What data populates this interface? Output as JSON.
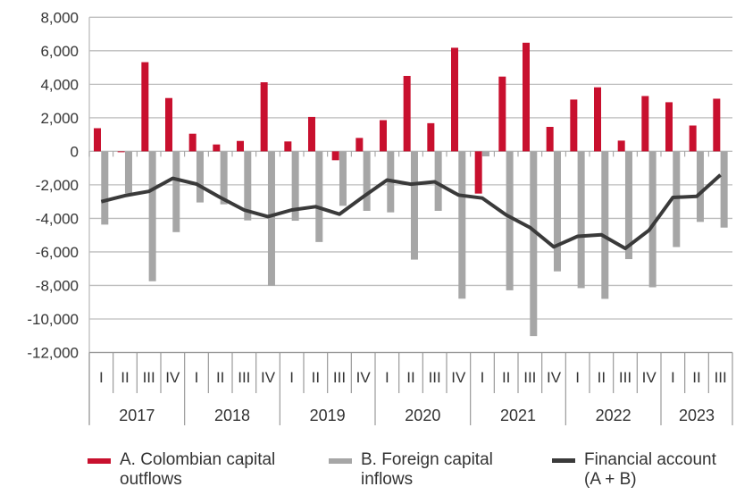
{
  "chart_data": {
    "type": "bar+line",
    "categories": [
      "I",
      "II",
      "III",
      "IV",
      "I",
      "II",
      "III",
      "IV",
      "I",
      "II",
      "III",
      "IV",
      "I",
      "II",
      "III",
      "IV",
      "I",
      "II",
      "III",
      "IV",
      "I",
      "II",
      "III",
      "IV",
      "I",
      "II",
      "III"
    ],
    "years": [
      {
        "label": "2017",
        "quarters": 4
      },
      {
        "label": "2018",
        "quarters": 4
      },
      {
        "label": "2019",
        "quarters": 4
      },
      {
        "label": "2020",
        "quarters": 4
      },
      {
        "label": "2021",
        "quarters": 4
      },
      {
        "label": "2022",
        "quarters": 4
      },
      {
        "label": "2023",
        "quarters": 3
      }
    ],
    "ylim": [
      -12000,
      8000
    ],
    "yticks": [
      8000,
      6000,
      4000,
      2000,
      0,
      -2000,
      -4000,
      -6000,
      -8000,
      -10000,
      -12000
    ],
    "ytick_labels": [
      "8,000",
      "6,000",
      "4,000",
      "2,000",
      "0",
      "-2,000",
      "-4,000",
      "-6,000",
      "-8,000",
      "-10,000",
      "-12,000"
    ],
    "grid": true,
    "legend_position": "bottom",
    "series": [
      {
        "name_lines": [
          "A. Colombian capital",
          "outflows"
        ],
        "type": "bar",
        "color": "#c8102e",
        "values": [
          1380,
          -50,
          5320,
          3180,
          1050,
          410,
          620,
          4120,
          590,
          2050,
          -530,
          800,
          1860,
          4500,
          1680,
          6180,
          -2520,
          4460,
          6480,
          1460,
          3090,
          3820,
          640,
          3300,
          2930,
          1540,
          3140
        ]
      },
      {
        "name_lines": [
          "B. Foreign capital",
          "inflows"
        ],
        "type": "bar",
        "color": "#a6a6a6",
        "values": [
          -4370,
          -2500,
          -7750,
          -4820,
          -3050,
          -3160,
          -4120,
          -8020,
          -4140,
          -5410,
          -3250,
          -3550,
          -3640,
          -6460,
          -3550,
          -8790,
          -300,
          -8290,
          -11020,
          -7160,
          -8160,
          -8800,
          -6430,
          -8110,
          -5710,
          -4210,
          -4550
        ]
      },
      {
        "name_lines": [
          "Financial account",
          "(A + B)"
        ],
        "type": "line",
        "color": "#3a3a3a",
        "values": [
          -3000,
          -2640,
          -2390,
          -1610,
          -1950,
          -2750,
          -3500,
          -3890,
          -3500,
          -3300,
          -3750,
          -2710,
          -1710,
          -1960,
          -1820,
          -2610,
          -2790,
          -3790,
          -4540,
          -5700,
          -5070,
          -4980,
          -5790,
          -4710,
          -2750,
          -2680,
          -1410
        ]
      }
    ]
  }
}
